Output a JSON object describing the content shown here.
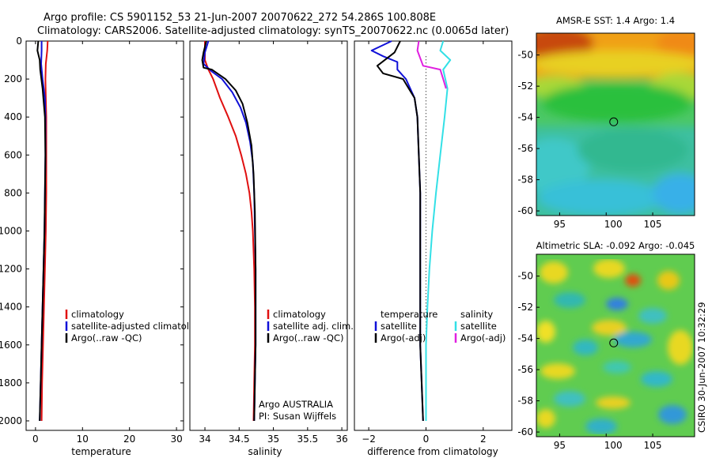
{
  "header": {
    "title_line1": "Argo profile: CS 5901152_53 21-Jun-2007 20070622_272 54.286S 100.808E",
    "title_line2": "Climatology: CARS2006. Satellite-adjusted climatology: synTS_20070622.nc (0.0065d later)"
  },
  "depth_axis": {
    "range": [
      2050,
      0
    ],
    "ticks": [
      0,
      200,
      400,
      600,
      800,
      1000,
      1200,
      1400,
      1600,
      1800,
      2000
    ]
  },
  "panels": [
    {
      "id": "temperature",
      "xlabel": "temperature",
      "xlim": [
        -2,
        31.5
      ],
      "xticks": [
        0,
        10,
        20,
        30
      ],
      "xtick_labels": [
        "0",
        "10",
        "20",
        "30"
      ],
      "legend": [
        "climatology",
        "satellite-adjusted climatology",
        "Argo(..raw -QC)"
      ]
    },
    {
      "id": "salinity",
      "xlabel": "salinity",
      "xlim": [
        33.78,
        36.08
      ],
      "xticks": [
        34,
        34.5,
        35,
        35.5,
        36
      ],
      "xtick_labels": [
        "34",
        "34.5",
        "35",
        "35.5",
        "36"
      ],
      "legend": [
        "climatology",
        "satellite adj. clim.",
        "Argo(..raw -QC)"
      ],
      "note": [
        "Argo AUSTRALIA",
        "PI: Susan Wijffels"
      ]
    },
    {
      "id": "difference",
      "xlabel": "difference from climatology",
      "xlim": [
        -2.5,
        3.0
      ],
      "xticks": [
        -2,
        0,
        2
      ],
      "xtick_labels": [
        "−2",
        "0",
        "2"
      ],
      "legend_left_title": "temperature",
      "legend_left": [
        "satellite",
        "Argo(-adj)"
      ],
      "legend_right_title": "salinity",
      "legend_right": [
        "satellite",
        "Argo(-adj)"
      ]
    }
  ],
  "maps": [
    {
      "id": "sst",
      "title": "AMSR-E SST: 1.4 Argo: 1.4",
      "xticks": [
        95,
        100,
        105
      ],
      "xtick_labels": [
        "95",
        "100",
        "105"
      ],
      "yticks": [
        -50,
        -52,
        -54,
        -56,
        -58,
        -60
      ],
      "yrange": [
        -48.6,
        -60.3
      ],
      "xrange": [
        92.5,
        109.5
      ],
      "marker": {
        "lon": 100.808,
        "lat": -54.286
      }
    },
    {
      "id": "sla",
      "title": "Altimetric SLA: -0.092 Argo: -0.045",
      "xticks": [
        95,
        100,
        105
      ],
      "xtick_labels": [
        "95",
        "100",
        "105"
      ],
      "yticks": [
        -50,
        -52,
        -54,
        -56,
        -58,
        -60
      ],
      "yrange": [
        -48.6,
        -60.3
      ],
      "xrange": [
        92.5,
        109.5
      ],
      "marker": {
        "lon": 100.808,
        "lat": -54.286
      }
    }
  ],
  "side_label": "CSIRO 30-Jun-2007 10:32:29",
  "colors": {
    "climatology": "#e01010",
    "satellite": "#1010d8",
    "argo": "#000000",
    "sal_satellite": "#33e0e6",
    "sal_argo": "#e020e0"
  },
  "chart_data": [
    {
      "type": "line",
      "name": "temperature",
      "series": [
        {
          "legend_index": 0,
          "values": [
            [
              2.6,
              0
            ],
            [
              2.5,
              50
            ],
            [
              2.2,
              120
            ],
            [
              2.1,
              200
            ],
            [
              2.2,
              300
            ],
            [
              2.3,
              400
            ],
            [
              2.3,
              600
            ],
            [
              2.3,
              800
            ],
            [
              2.2,
              1000
            ],
            [
              2.0,
              1200
            ],
            [
              1.8,
              1400
            ],
            [
              1.6,
              1600
            ],
            [
              1.4,
              1800
            ],
            [
              1.3,
              2000
            ]
          ]
        },
        {
          "legend_index": 1,
          "values": [
            [
              1.3,
              0
            ],
            [
              1.3,
              50
            ],
            [
              1.2,
              120
            ],
            [
              1.5,
              200
            ],
            [
              2.0,
              300
            ],
            [
              2.1,
              400
            ],
            [
              2.1,
              600
            ],
            [
              2.0,
              800
            ],
            [
              1.9,
              1000
            ],
            [
              1.7,
              1200
            ],
            [
              1.5,
              1400
            ],
            [
              1.3,
              1600
            ],
            [
              1.1,
              1800
            ],
            [
              0.9,
              2000
            ]
          ]
        },
        {
          "legend_index": 2,
          "values": [
            [
              0.6,
              0
            ],
            [
              0.4,
              50
            ],
            [
              0.9,
              100
            ],
            [
              1.0,
              150
            ],
            [
              1.5,
              250
            ],
            [
              2.0,
              400
            ],
            [
              2.1,
              600
            ],
            [
              2.0,
              800
            ],
            [
              1.9,
              1000
            ],
            [
              1.7,
              1200
            ],
            [
              1.5,
              1400
            ],
            [
              1.3,
              1600
            ],
            [
              1.1,
              1800
            ],
            [
              0.9,
              2000
            ]
          ]
        }
      ]
    },
    {
      "type": "line",
      "name": "salinity",
      "series": [
        {
          "legend_index": 0,
          "values": [
            [
              34.0,
              0
            ],
            [
              34.0,
              100
            ],
            [
              34.05,
              150
            ],
            [
              34.12,
              200
            ],
            [
              34.22,
              300
            ],
            [
              34.34,
              400
            ],
            [
              34.45,
              500
            ],
            [
              34.53,
              600
            ],
            [
              34.6,
              700
            ],
            [
              34.65,
              800
            ],
            [
              34.68,
              900
            ],
            [
              34.7,
              1000
            ],
            [
              34.72,
              1200
            ],
            [
              34.73,
              1400
            ],
            [
              34.73,
              1600
            ],
            [
              34.72,
              1800
            ],
            [
              34.71,
              2000
            ]
          ]
        },
        {
          "legend_index": 1,
          "values": [
            [
              34.05,
              0
            ],
            [
              34.0,
              60
            ],
            [
              33.98,
              120
            ],
            [
              34.1,
              160
            ],
            [
              34.25,
              200
            ],
            [
              34.4,
              270
            ],
            [
              34.52,
              350
            ],
            [
              34.6,
              430
            ],
            [
              34.66,
              530
            ],
            [
              34.7,
              640
            ],
            [
              34.72,
              800
            ],
            [
              34.73,
              1000
            ],
            [
              34.74,
              1200
            ],
            [
              34.74,
              1600
            ],
            [
              34.73,
              1800
            ],
            [
              34.72,
              2000
            ]
          ]
        },
        {
          "legend_index": 2,
          "values": [
            [
              34.02,
              0
            ],
            [
              33.98,
              60
            ],
            [
              33.96,
              100
            ],
            [
              33.98,
              140
            ],
            [
              34.1,
              150
            ],
            [
              34.3,
              200
            ],
            [
              34.45,
              260
            ],
            [
              34.55,
              330
            ],
            [
              34.62,
              430
            ],
            [
              34.68,
              550
            ],
            [
              34.71,
              700
            ],
            [
              34.73,
              900
            ],
            [
              34.74,
              1200
            ],
            [
              34.74,
              1600
            ],
            [
              34.73,
              1800
            ],
            [
              34.72,
              2000
            ]
          ]
        }
      ]
    },
    {
      "type": "line",
      "name": "difference from climatology",
      "series": [
        {
          "legend_group": "temperature",
          "legend_index": 0,
          "values": [
            [
              -1.2,
              0
            ],
            [
              -1.9,
              50
            ],
            [
              -1.5,
              80
            ],
            [
              -1.0,
              110
            ],
            [
              -1.0,
              150
            ],
            [
              -0.7,
              200
            ],
            [
              -0.4,
              300
            ],
            [
              -0.3,
              400
            ],
            [
              -0.25,
              600
            ],
            [
              -0.2,
              800
            ],
            [
              -0.2,
              1000
            ],
            [
              -0.2,
              1200
            ],
            [
              -0.2,
              1400
            ],
            [
              -0.2,
              1600
            ],
            [
              -0.15,
              1800
            ],
            [
              -0.1,
              2000
            ]
          ]
        },
        {
          "legend_group": "temperature",
          "legend_index": 1,
          "values": [
            [
              -0.9,
              0
            ],
            [
              -1.1,
              60
            ],
            [
              -1.7,
              130
            ],
            [
              -1.5,
              170
            ],
            [
              -0.8,
              200
            ],
            [
              -0.6,
              250
            ],
            [
              -0.4,
              300
            ],
            [
              -0.3,
              400
            ],
            [
              -0.25,
              600
            ],
            [
              -0.2,
              800
            ],
            [
              -0.2,
              1000
            ],
            [
              -0.2,
              1200
            ],
            [
              -0.2,
              1400
            ],
            [
              -0.2,
              1600
            ],
            [
              -0.15,
              1800
            ],
            [
              -0.1,
              2000
            ]
          ]
        },
        {
          "legend_group": "salinity",
          "legend_index": 0,
          "values": [
            [
              0.6,
              0
            ],
            [
              0.5,
              50
            ],
            [
              0.85,
              100
            ],
            [
              0.6,
              150
            ],
            [
              0.75,
              250
            ],
            [
              0.65,
              400
            ],
            [
              0.5,
              600
            ],
            [
              0.35,
              800
            ],
            [
              0.22,
              1000
            ],
            [
              0.12,
              1200
            ],
            [
              0.05,
              1400
            ],
            [
              0.0,
              1600
            ],
            [
              0.0,
              1800
            ],
            [
              0.0,
              2000
            ]
          ]
        },
        {
          "legend_group": "salinity",
          "legend_index": 1,
          "values": [
            [
              -0.25,
              0
            ],
            [
              -0.3,
              50
            ],
            [
              -0.1,
              130
            ],
            [
              0.5,
              150
            ],
            [
              0.6,
              200
            ],
            [
              0.7,
              250
            ]
          ]
        }
      ]
    }
  ]
}
